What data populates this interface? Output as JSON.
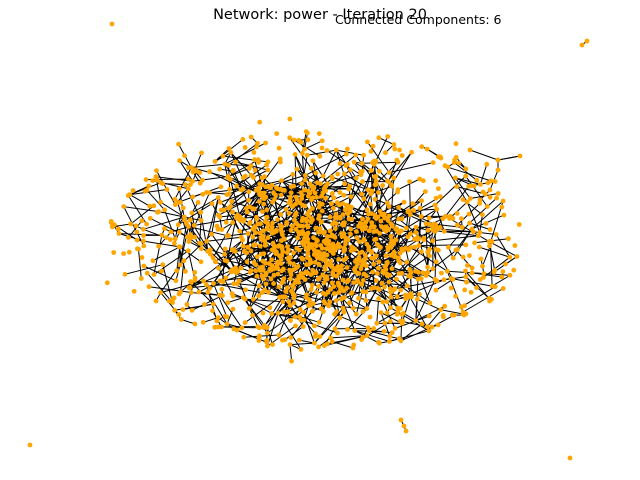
{
  "figure": {
    "title": "Network: power - Iteration 20",
    "subtitle": "Connected Components: 6"
  },
  "colors": {
    "node": "#FFA500",
    "edge": "#000000",
    "background": "#ffffff"
  }
}
